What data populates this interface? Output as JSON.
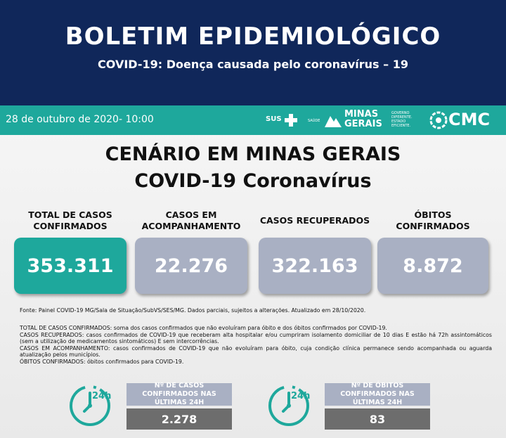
{
  "header": {
    "title": "BOLETIM EPIDEMIOLÓGICO",
    "subtitle": "COVID-19: Doença causada pelo coronavírus – 19"
  },
  "bar": {
    "date": "28 de outubro de 2020- 10:00",
    "sus": "SUS",
    "saude": "SAÚDE",
    "minas": "MINAS",
    "gerais": "GERAIS",
    "slogan": [
      "GOVERNO",
      "DIFERENTE.",
      "ESTADO",
      "EFICIENTE."
    ],
    "cmc": "CMC"
  },
  "main": {
    "title": "CENÁRIO EM MINAS GERAIS",
    "subtitle": "COVID-19 Coronavírus"
  },
  "cards": [
    {
      "label": "TOTAL DE CASOS CONFIRMADOS",
      "value": "353.311"
    },
    {
      "label": "CASOS EM ACOMPANHAMENTO",
      "value": "22.276"
    },
    {
      "label": "CASOS RECUPERADOS",
      "value": "322.163"
    },
    {
      "label": "ÓBITOS CONFIRMADOS",
      "value": "8.872"
    }
  ],
  "source": "Fonte: Painel COVID-19 MG/Sala de Situação/SubVS/SES/MG. Dados parciais, sujeitos a alterações. Atualizado em 28/10/2020.",
  "definitions": [
    {
      "term": "TOTAL DE  CASOS CONFIRMADOS:",
      "text": "soma dos casos confirmados que não evoluíram para óbito e dos óbitos confirmados por COVID-19."
    },
    {
      "term": "CASOS RECUPERADOS:",
      "text": "casos confirmados de COVID-19 que receberam alta hospitalar e/ou cumpriram isolamento domiciliar de 10 dias E estão há 72h assintomáticos (sem a utilização de medicamentos sintomáticos) E sem intercorrências."
    },
    {
      "term": "CASOS EM ACOMPANHAMENTO:",
      "text": "casos confirmados de COVID-19 que não evoluíram para óbito, cuja condição clínica permanece sendo acompanhada ou aguarda atualização pelos municípios."
    },
    {
      "term": "ÓBITOS CONFIRMADOS:",
      "text": "óbitos confirmados para COVID-19."
    }
  ],
  "last24": [
    {
      "icon": "24h",
      "label": "Nº DE CASOS CONFIRMADOS NAS ÚLTIMAS 24H",
      "value": "2.278"
    },
    {
      "icon": "24h",
      "label": "Nº DE ÓBITOS CONFIRMADOS NAS ÚLTIMAS 24H",
      "value": "83"
    }
  ]
}
